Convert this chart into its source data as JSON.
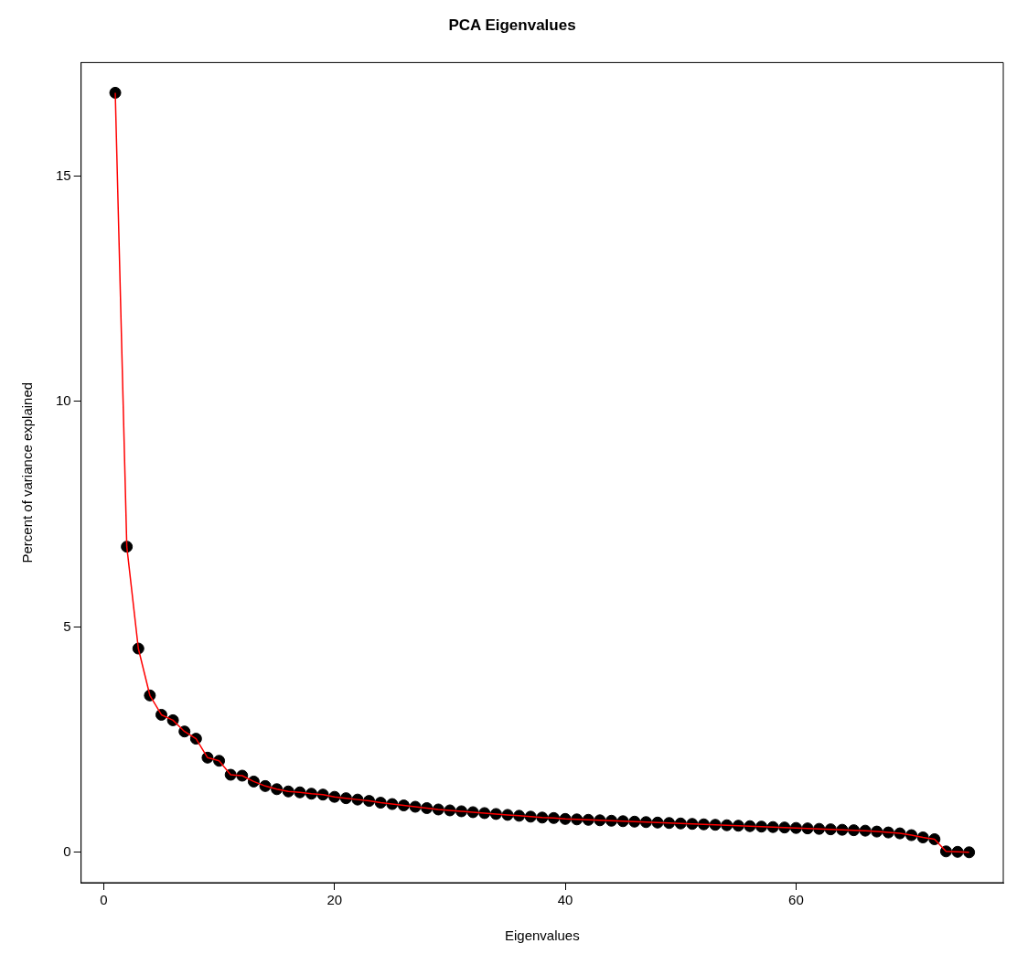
{
  "chart_data": {
    "type": "line",
    "title": "PCA Eigenvalues",
    "xlabel": "Eigenvalues",
    "ylabel": "Percent of variance explained",
    "x": [
      1,
      2,
      3,
      4,
      5,
      6,
      7,
      8,
      9,
      10,
      11,
      12,
      13,
      14,
      15,
      16,
      17,
      18,
      19,
      20,
      21,
      22,
      23,
      24,
      25,
      26,
      27,
      28,
      29,
      30,
      31,
      32,
      33,
      34,
      35,
      36,
      37,
      38,
      39,
      40,
      41,
      42,
      43,
      44,
      45,
      46,
      47,
      48,
      49,
      50,
      51,
      52,
      53,
      54,
      55,
      56,
      57,
      58,
      59,
      60,
      61,
      62,
      63,
      64,
      65,
      66,
      67,
      68,
      69,
      70,
      71,
      72,
      73,
      74,
      75
    ],
    "series": [
      {
        "type": "scatter",
        "color": "#000000",
        "marker": "circle",
        "values": [
          16.85,
          6.78,
          4.52,
          3.48,
          3.05,
          2.93,
          2.68,
          2.52,
          2.1,
          2.03,
          1.72,
          1.7,
          1.57,
          1.47,
          1.4,
          1.35,
          1.33,
          1.3,
          1.28,
          1.23,
          1.2,
          1.17,
          1.14,
          1.1,
          1.07,
          1.04,
          1.01,
          0.98,
          0.95,
          0.93,
          0.91,
          0.89,
          0.87,
          0.85,
          0.83,
          0.81,
          0.79,
          0.77,
          0.76,
          0.74,
          0.73,
          0.72,
          0.71,
          0.7,
          0.69,
          0.68,
          0.67,
          0.66,
          0.65,
          0.64,
          0.63,
          0.62,
          0.61,
          0.6,
          0.59,
          0.58,
          0.57,
          0.56,
          0.55,
          0.54,
          0.53,
          0.52,
          0.51,
          0.5,
          0.49,
          0.48,
          0.46,
          0.44,
          0.42,
          0.38,
          0.33,
          0.29,
          0.02,
          0.01,
          0.0
        ]
      },
      {
        "type": "line",
        "color": "#ff0000",
        "line_style": "solid",
        "values": [
          16.85,
          6.78,
          4.52,
          3.48,
          3.05,
          2.93,
          2.68,
          2.52,
          2.1,
          2.03,
          1.72,
          1.7,
          1.57,
          1.47,
          1.4,
          1.35,
          1.33,
          1.3,
          1.28,
          1.23,
          1.2,
          1.17,
          1.14,
          1.1,
          1.07,
          1.04,
          1.01,
          0.98,
          0.95,
          0.93,
          0.91,
          0.89,
          0.87,
          0.85,
          0.83,
          0.81,
          0.79,
          0.77,
          0.76,
          0.74,
          0.73,
          0.72,
          0.71,
          0.7,
          0.69,
          0.68,
          0.67,
          0.66,
          0.65,
          0.64,
          0.63,
          0.62,
          0.61,
          0.6,
          0.59,
          0.58,
          0.57,
          0.56,
          0.55,
          0.54,
          0.53,
          0.52,
          0.51,
          0.5,
          0.49,
          0.48,
          0.46,
          0.44,
          0.42,
          0.38,
          0.33,
          0.29,
          0.02,
          0.01,
          0.0
        ]
      }
    ],
    "xlim": [
      -1.96,
      77.96
    ],
    "xticks": [
      0,
      20,
      40,
      60
    ],
    "ylim": [
      -0.674,
      17.52
    ],
    "yticks": [
      0,
      5,
      10,
      15
    ],
    "grid": false,
    "legend": false
  }
}
